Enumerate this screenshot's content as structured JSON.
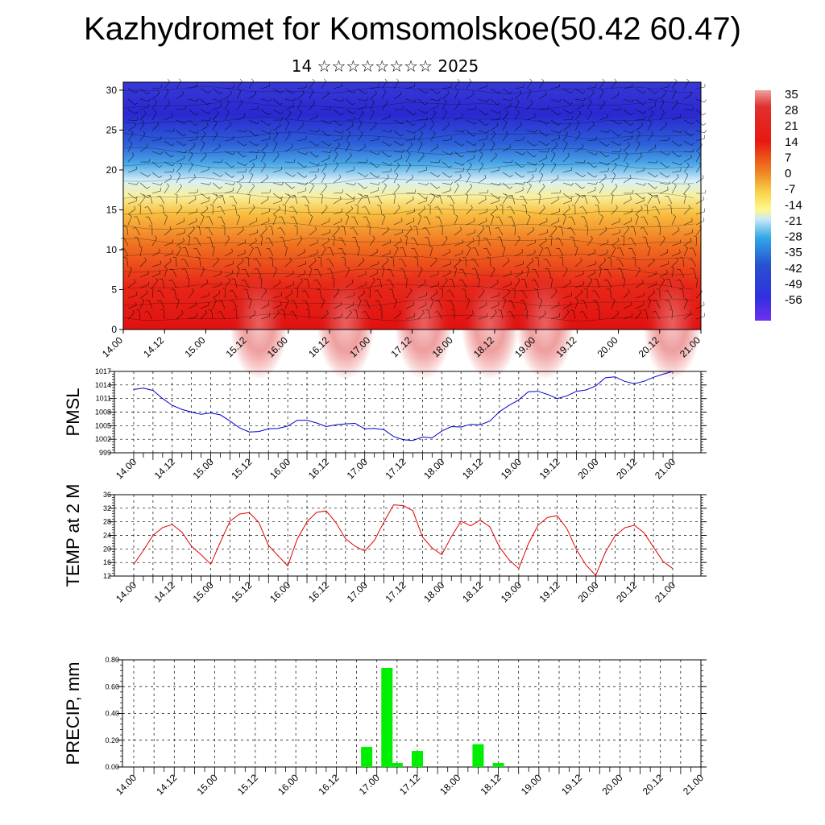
{
  "title": "Kazhydromet for Komsomolskoe(50.42 60.47)",
  "subtitle": "14 ☆☆☆☆☆☆☆☆ 2025",
  "colorbar": {
    "labels": [
      "35",
      "28",
      "21",
      "14",
      "7",
      "0",
      "-7",
      "-14",
      "-21",
      "-28",
      "-35",
      "-42",
      "-49",
      "-56"
    ],
    "colors": [
      "#e06060",
      "#e02020",
      "#f06010",
      "#f8b030",
      "#fff070",
      "#a8dcf8",
      "#30a8e8",
      "#2050d0",
      "#3030e0",
      "#7030f0"
    ]
  },
  "x_tick_labels": [
    "14.00",
    "14.12",
    "15.00",
    "15.12",
    "16.00",
    "16.12",
    "17.00",
    "17.12",
    "18.00",
    "18.12",
    "19.00",
    "19.12",
    "20.00",
    "20.12",
    "21.00"
  ],
  "chart_data": [
    {
      "type": "heatmap",
      "description_key": "cross-section",
      "y_ticks": [
        0,
        5,
        10,
        15,
        20,
        25,
        30
      ],
      "ylim": [
        0,
        31
      ],
      "x": [
        "14.00",
        "14.12",
        "15.00",
        "15.12",
        "16.00",
        "16.12",
        "17.00",
        "17.12",
        "18.00",
        "18.12",
        "19.00",
        "19.12",
        "20.00",
        "20.12",
        "21.00"
      ],
      "value_range": [
        -56,
        35
      ]
    },
    {
      "type": "line",
      "ylabel": "PMSL",
      "ylim": [
        999,
        1017
      ],
      "y_ticks": [
        999,
        1002,
        1005,
        1008,
        1011,
        1014,
        1017
      ],
      "color": "#0000cc",
      "x": [
        0,
        3,
        6,
        9,
        12,
        15,
        18,
        21,
        24,
        27,
        30,
        33,
        36,
        39,
        42,
        45,
        48,
        51,
        54,
        57,
        60,
        63,
        66,
        69,
        72,
        75,
        78,
        81,
        84,
        87,
        90,
        93,
        96,
        99,
        102,
        105,
        108,
        111,
        114,
        117,
        120,
        123,
        126,
        129,
        132,
        135,
        138,
        141,
        144,
        147,
        150,
        153,
        156,
        159,
        162,
        165,
        168
      ],
      "values": [
        1013,
        1013.3,
        1012.8,
        1011,
        1009.5,
        1008.6,
        1008,
        1007.5,
        1007.8,
        1007.4,
        1006,
        1004.5,
        1003.6,
        1003.7,
        1004.3,
        1004.4,
        1004.9,
        1006.2,
        1006.2,
        1005.6,
        1004.8,
        1005.2,
        1005.4,
        1005.5,
        1004.3,
        1004.4,
        1004.1,
        1002.6,
        1001.9,
        1001.7,
        1002.5,
        1002.3,
        1003.8,
        1004.8,
        1004.7,
        1005.3,
        1005.2,
        1006,
        1008.1,
        1009.5,
        1010.7,
        1012.5,
        1012.6,
        1011.9,
        1011,
        1011.6,
        1012.6,
        1012.9,
        1013.8,
        1015.6,
        1015.8,
        1014.8,
        1014.3,
        1014.8,
        1015.7,
        1016.4,
        1017
      ]
    },
    {
      "type": "line",
      "ylabel": "TEMP at 2 M",
      "ylim": [
        12,
        36
      ],
      "y_ticks": [
        12,
        16,
        20,
        24,
        28,
        32,
        36
      ],
      "color": "#e00000",
      "x": [
        0,
        3,
        6,
        9,
        12,
        15,
        18,
        21,
        24,
        27,
        30,
        33,
        36,
        39,
        42,
        45,
        48,
        51,
        54,
        57,
        60,
        63,
        66,
        69,
        72,
        75,
        78,
        81,
        84,
        87,
        90,
        93,
        96,
        99,
        102,
        105,
        108,
        111,
        114,
        117,
        120,
        123,
        126,
        129,
        132,
        135,
        138,
        141,
        144,
        147,
        150,
        153,
        156,
        159,
        162,
        165,
        168
      ],
      "values": [
        15.5,
        19.5,
        24,
        26.3,
        27.2,
        25,
        20.8,
        18.3,
        15.5,
        22,
        28.2,
        30.3,
        30.7,
        27.8,
        21,
        18,
        15,
        23,
        28,
        30.8,
        31.2,
        27.8,
        23,
        20.8,
        19.4,
        22.5,
        28,
        33,
        32.8,
        31.3,
        23.5,
        20.3,
        18.3,
        23.6,
        28.2,
        26.8,
        28.5,
        26.5,
        20.5,
        16.8,
        14.2,
        21.5,
        27,
        29.3,
        29.8,
        26,
        19.8,
        15.2,
        12.2,
        19,
        23.8,
        26.2,
        27,
        24.8,
        20.5,
        16.3,
        14.2
      ]
    },
    {
      "type": "bar",
      "ylabel": "PRECIP, mm",
      "ylim": [
        0,
        0.8
      ],
      "y_ticks": [
        "0.00",
        "0.20",
        "0.40",
        "0.60",
        "0.80"
      ],
      "color": "#00ee00",
      "x": [
        69,
        75,
        78,
        84,
        102,
        108
      ],
      "values": [
        0.15,
        0.74,
        0.03,
        0.12,
        0.17,
        0.03
      ]
    }
  ]
}
